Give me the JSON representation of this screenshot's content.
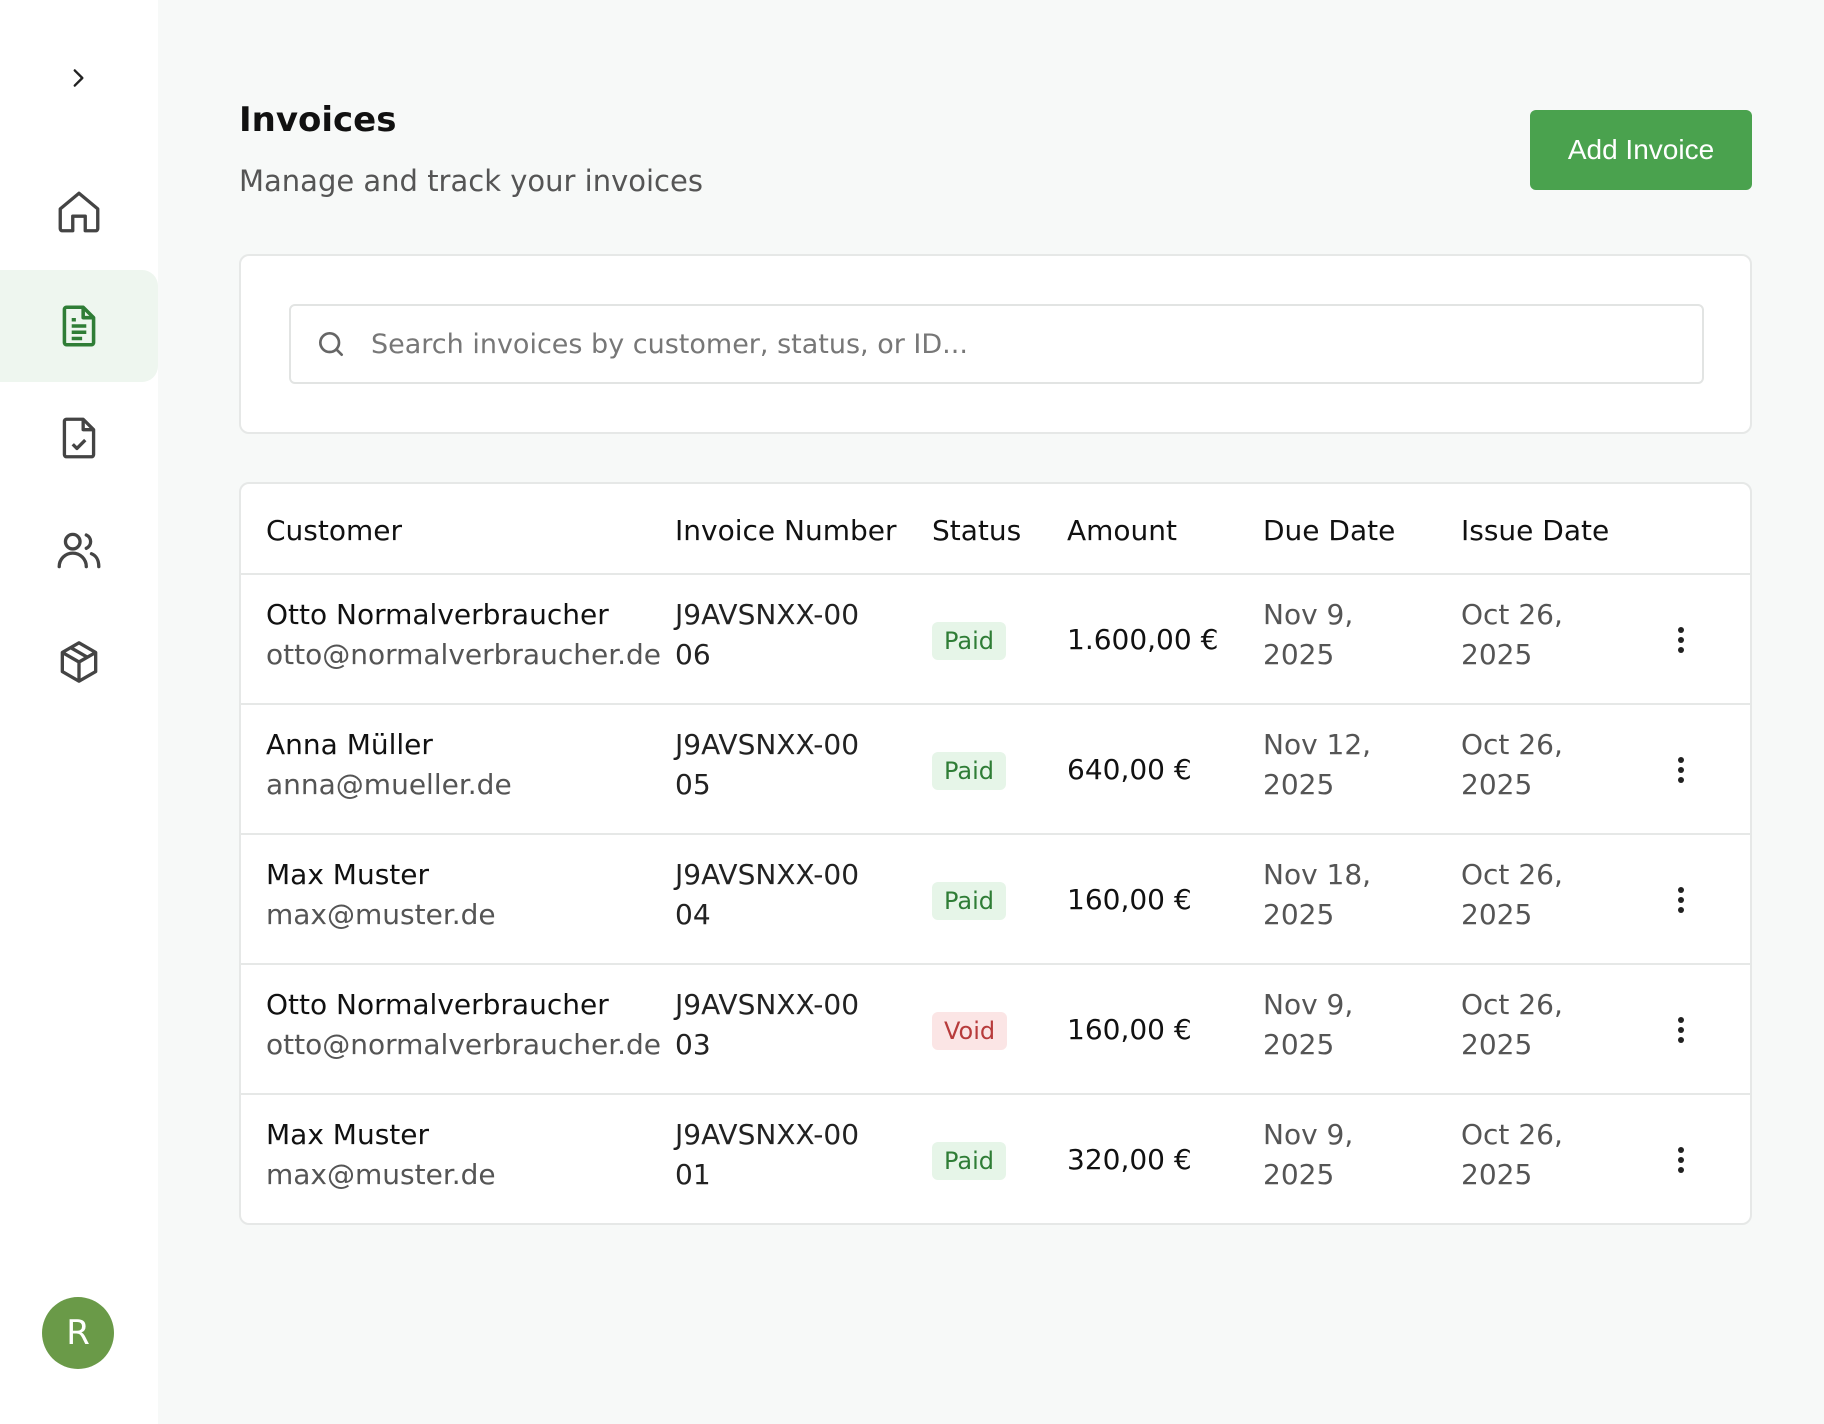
{
  "sidebar": {
    "items": [
      {
        "name": "home",
        "icon": "home-icon"
      },
      {
        "name": "invoices",
        "icon": "document-icon",
        "active": true
      },
      {
        "name": "quotes",
        "icon": "file-check-icon"
      },
      {
        "name": "customers",
        "icon": "users-icon"
      },
      {
        "name": "products",
        "icon": "box-icon"
      }
    ],
    "avatar_initial": "R"
  },
  "header": {
    "title": "Invoices",
    "subtitle": "Manage and track your invoices",
    "add_button": "Add Invoice"
  },
  "search": {
    "placeholder": "Search invoices by customer, status, or ID..."
  },
  "table": {
    "columns": [
      "Customer",
      "Invoice Number",
      "Status",
      "Amount",
      "Due Date",
      "Issue Date"
    ],
    "rows": [
      {
        "customer": "Otto Normalverbraucher",
        "email": "otto@normalverbraucher.de",
        "invoice": "J9AVSNXX-0006",
        "status": "Paid",
        "amount": "1.600,00 €",
        "due": "Nov 9, 2025",
        "issue": "Oct 26, 2025"
      },
      {
        "customer": "Anna Müller",
        "email": "anna@mueller.de",
        "invoice": "J9AVSNXX-0005",
        "status": "Paid",
        "amount": "640,00 €",
        "due": "Nov 12, 2025",
        "issue": "Oct 26, 2025"
      },
      {
        "customer": "Max Muster",
        "email": "max@muster.de",
        "invoice": "J9AVSNXX-0004",
        "status": "Paid",
        "amount": "160,00 €",
        "due": "Nov 18, 2025",
        "issue": "Oct 26, 2025"
      },
      {
        "customer": "Otto Normalverbraucher",
        "email": "otto@normalverbraucher.de",
        "invoice": "J9AVSNXX-0003",
        "status": "Void",
        "amount": "160,00 €",
        "due": "Nov 9, 2025",
        "issue": "Oct 26, 2025"
      },
      {
        "customer": "Max Muster",
        "email": "max@muster.de",
        "invoice": "J9AVSNXX-0001",
        "status": "Paid",
        "amount": "320,00 €",
        "due": "Nov 9, 2025",
        "issue": "Oct 26, 2025"
      }
    ]
  },
  "colors": {
    "accent": "#4aa24e",
    "avatar": "#6a9a48",
    "paid_bg": "#e6f5e8",
    "paid_text": "#2f7d36",
    "void_bg": "#fbe5e5",
    "void_text": "#b73b3b"
  }
}
